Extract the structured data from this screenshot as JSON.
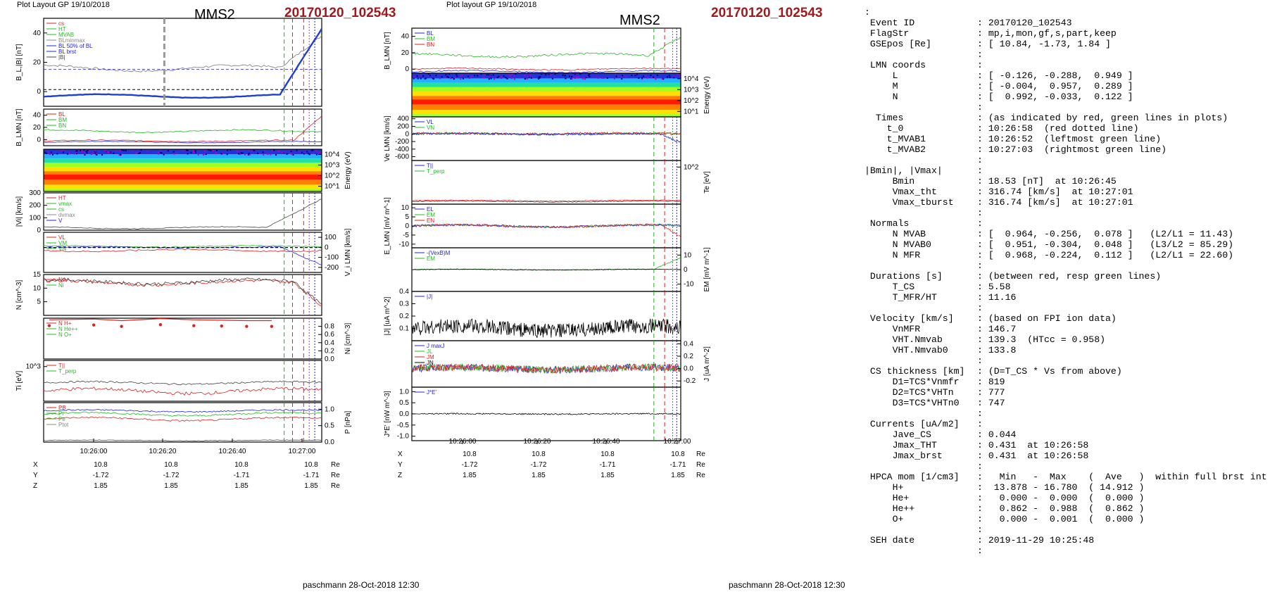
{
  "left": {
    "plot_label": "Plot Layout GP 19/10/2018",
    "mms_label": "MMS2",
    "event_label": "20170120_102543",
    "footer": "paschmann 28-Oct-2018 12:30",
    "time_ticks": [
      "10:26:00",
      "10:26:20",
      "10:26:40",
      "10:27:00"
    ],
    "ephem_rows": [
      {
        "name": "X",
        "values": [
          "10.8",
          "10.8",
          "10.8",
          "10.8"
        ],
        "unit": "Re"
      },
      {
        "name": "Y",
        "values": [
          "-1.72",
          "-1.72",
          "-1.71",
          "-1.71"
        ],
        "unit": "Re"
      },
      {
        "name": "Z",
        "values": [
          "1.85",
          "1.85",
          "1.85",
          "1.85"
        ],
        "unit": "Re"
      }
    ]
  },
  "right": {
    "plot_label": "Plot layout GP 19/10/2018",
    "mms_label": "MMS2",
    "event_label": "20170120_102543",
    "footer": "paschmann 28-Oct-2018 12:30",
    "time_ticks": [
      "10:26:00",
      "10:26:20",
      "10:26:40",
      "10:27:00"
    ],
    "ephem_rows": [
      {
        "name": "X",
        "values": [
          "10.8",
          "10.8",
          "10.8",
          "10.8"
        ],
        "unit": "Re"
      },
      {
        "name": "Y",
        "values": [
          "-1.72",
          "-1.72",
          "-1.71",
          "-1.71"
        ],
        "unit": "Re"
      },
      {
        "name": "Z",
        "values": [
          "1.85",
          "1.85",
          "1.85",
          "1.85"
        ],
        "unit": "Re"
      }
    ]
  },
  "info_lines": [
    [
      ":",
      ""
    ],
    [
      " Event ID",
      ": 20170120_102543"
    ],
    [
      " FlagStr",
      ": mp,i,mon,gf,s,part,keep"
    ],
    [
      " GSEpos [Re]",
      ": [ 10.84, -1.73, 1.84 ]"
    ],
    [
      "",
      ":"
    ],
    [
      " LMN coords",
      ":"
    ],
    [
      "     L",
      ": [ -0.126, -0.288,  0.949 ]"
    ],
    [
      "     M",
      ": [ -0.004,  0.957,  0.289 ]"
    ],
    [
      "     N",
      ": [  0.992, -0.033,  0.122 ]"
    ],
    [
      "",
      ":"
    ],
    [
      "  Times",
      ": (as indicated by red, green lines in plots)"
    ],
    [
      "    t_0",
      ": 10:26:58  (red dotted line)"
    ],
    [
      "    t_MVAB1",
      ": 10:26:52  (leftmost green line)"
    ],
    [
      "    t_MVAB2",
      ": 10:27:03  (rightmost green line)"
    ],
    [
      "",
      ":"
    ],
    [
      "|Bmin|, |Vmax|",
      ":"
    ],
    [
      "     Bmin",
      ": 18.53 [nT]  at 10:26:45"
    ],
    [
      "     Vmax_tht",
      ": 316.74 [km/s]  at 10:27:01"
    ],
    [
      "     Vmax_tburst",
      ": 316.74 [km/s]  at 10:27:01"
    ],
    [
      "",
      ":"
    ],
    [
      " Normals",
      ":"
    ],
    [
      "     N MVAB",
      ": [  0.964, -0.256,  0.078 ]   (L2/L1 = 11.43)"
    ],
    [
      "     N MVAB0",
      ": [  0.951, -0.304,  0.048 ]   (L3/L2 = 85.29)"
    ],
    [
      "     N MFR",
      ": [  0.968, -0.224,  0.112 ]   (L2/L1 = 22.60)"
    ],
    [
      "",
      ":"
    ],
    [
      " Durations [s]",
      ": (between red, resp green lines)"
    ],
    [
      "     T_CS",
      ": 5.58"
    ],
    [
      "     T_MFR/HT",
      ": 11.16"
    ],
    [
      "",
      ":"
    ],
    [
      " Velocity [km/s]",
      ": (based on FPI ion data)"
    ],
    [
      "     VnMFR",
      ": 146.7"
    ],
    [
      "     VHT.Nmvab",
      ": 139.3  (HTcc = 0.958)"
    ],
    [
      "     VHT.Nmvab0",
      ": 133.8"
    ],
    [
      "",
      ":"
    ],
    [
      " CS thickness [km]",
      ": (D=T_CS * Vs from above)"
    ],
    [
      "     D1=TCS*Vnmfr",
      ": 819"
    ],
    [
      "     D2=TCS*VHTn",
      ": 777"
    ],
    [
      "     D3=TCS*VHTn0",
      ": 747"
    ],
    [
      "",
      ":"
    ],
    [
      " Currents [uA/m2]",
      ":"
    ],
    [
      "     Jave_CS",
      ": 0.044"
    ],
    [
      "     Jmax_THT",
      ": 0.431  at 10:26:58"
    ],
    [
      "     Jmax_brst",
      ": 0.431  at 10:26:58"
    ],
    [
      "",
      ":"
    ],
    [
      " HPCA mom [1/cm3]",
      ":   Min   -  Max    (  Ave   )  within full brst int"
    ],
    [
      "     H+",
      ":  13.878 - 16.780  ( 14.912 )"
    ],
    [
      "     He+",
      ":   0.000 -  0.000  (  0.000 )"
    ],
    [
      "     He++",
      ":   0.862 -  0.988  (  0.862 )"
    ],
    [
      "     O+",
      ":   0.000 -  0.001  (  0.000 )"
    ],
    [
      "",
      ":"
    ],
    [
      " SEH date",
      ": 2019-11-29 10:25:48"
    ],
    [
      "",
      ":"
    ]
  ],
  "chart_data": [
    {
      "type": "line",
      "id": "left-stack",
      "x_range": [
        "10:25:43",
        "10:27:02"
      ],
      "panels": [
        {
          "ylabel": "B_L,|B| [nT]",
          "ylim": [
            -10,
            50
          ],
          "ticks": [
            "0",
            "20",
            "40"
          ],
          "legend": [
            "cs",
            "HT",
            "MVAB",
            "BLminmax",
            "BL 50% of BL",
            "BL brst",
            "|B|"
          ]
        },
        {
          "ylabel": "B_LMN [nT]",
          "ylim": [
            -10,
            50
          ],
          "ticks": [
            "0",
            "20",
            "40"
          ],
          "legend": [
            "BL",
            "BM",
            "BN"
          ]
        },
        {
          "ylabel": "Energy (eV)",
          "type": "spectrogram",
          "ticks": [
            "10^4",
            "10^3",
            "10^2",
            "10^1"
          ]
        },
        {
          "ylabel": "|Vi| [km/s]",
          "ylim": [
            0,
            300
          ],
          "ticks": [
            "0",
            "100",
            "200",
            "300"
          ],
          "legend": [
            "HT",
            "vmax",
            "cs",
            "dvmax",
            "V"
          ]
        },
        {
          "ylabel": "V_i LMN [km/s]",
          "ylim": [
            -250,
            150
          ],
          "ticks": [
            "100",
            "0",
            "-100",
            "-200"
          ],
          "legend": [
            "VL",
            "VM",
            "VN"
          ]
        },
        {
          "ylabel": "N [cm^-3]",
          "ylim": [
            0,
            15
          ],
          "ticks": [
            "5",
            "10",
            "15"
          ],
          "legend": [
            "Ne",
            "Ni"
          ]
        },
        {
          "ylabel": "Ni [cm^-3]",
          "ylim": [
            0,
            1
          ],
          "ticks": [
            "0.8",
            "0.6",
            "0.4",
            "0.2",
            "0.0"
          ],
          "legend": [
            "N H+",
            "N He++",
            "N O+"
          ]
        },
        {
          "ylabel": "Ti [eV]",
          "ticks": [
            "10^3"
          ],
          "legend": [
            "T||",
            "T_perp"
          ]
        },
        {
          "ylabel": "P [nPa]",
          "ylim": [
            0,
            1.2
          ],
          "ticks": [
            "1.0",
            "0.5",
            "0.0"
          ],
          "legend": [
            "PB",
            "Pi",
            "Pe",
            "Ptot"
          ]
        }
      ]
    },
    {
      "type": "line",
      "id": "right-stack",
      "x_range": [
        "10:25:43",
        "10:27:02"
      ],
      "panels": [
        {
          "ylabel": "B_LMN [nT]",
          "ylim": [
            -5,
            50
          ],
          "ticks": [
            "0",
            "20",
            "40"
          ],
          "legend": [
            "BL",
            "BM",
            "BN"
          ]
        },
        {
          "ylabel": "Energy (eV)",
          "type": "spectrogram",
          "ticks": [
            "10^4",
            "10^3",
            "10^2",
            "10^1"
          ]
        },
        {
          "ylabel": "Ve LMN [km/s]",
          "ylim": [
            -700,
            450
          ],
          "ticks": [
            "400",
            "200",
            "0",
            "-200",
            "-400",
            "-600"
          ],
          "legend": [
            "VL",
            "VN"
          ]
        },
        {
          "ylabel": "Te [eV]",
          "ticks": [
            "10^2"
          ],
          "legend": [
            "T||",
            "T_perp"
          ]
        },
        {
          "ylabel": "E_LMN [mV m^-1]",
          "ylim": [
            -12,
            12
          ],
          "ticks": [
            "10",
            "5",
            "0",
            "-5",
            "-10"
          ],
          "legend": [
            "EL",
            "EM",
            "EN"
          ]
        },
        {
          "ylabel": "EM [mV m^-1]",
          "ylim": [
            -15,
            15
          ],
          "ticks": [
            "10",
            "0",
            "-10"
          ],
          "legend": [
            "-(VexB)M",
            "EM"
          ]
        },
        {
          "ylabel": "|J| [uA m^-2]",
          "ylim": [
            0,
            0.4
          ],
          "ticks": [
            "0.4",
            "0.3",
            "0.2",
            "0.1"
          ],
          "legend": [
            "|J|"
          ]
        },
        {
          "ylabel": "J [uA m^-2]",
          "ylim": [
            -0.3,
            0.45
          ],
          "ticks": [
            "0.4",
            "0.2",
            "0.0",
            "-0.2"
          ],
          "legend": [
            "J maxJ",
            "JL",
            "JM",
            "JN"
          ]
        },
        {
          "ylabel": "J*E' [nW m^-3]",
          "ylim": [
            -1.2,
            1.2
          ],
          "ticks": [
            "1.0",
            "0.5",
            "0.0",
            "-0.5",
            "-1.0"
          ],
          "legend": [
            "J*E'"
          ]
        }
      ]
    }
  ]
}
